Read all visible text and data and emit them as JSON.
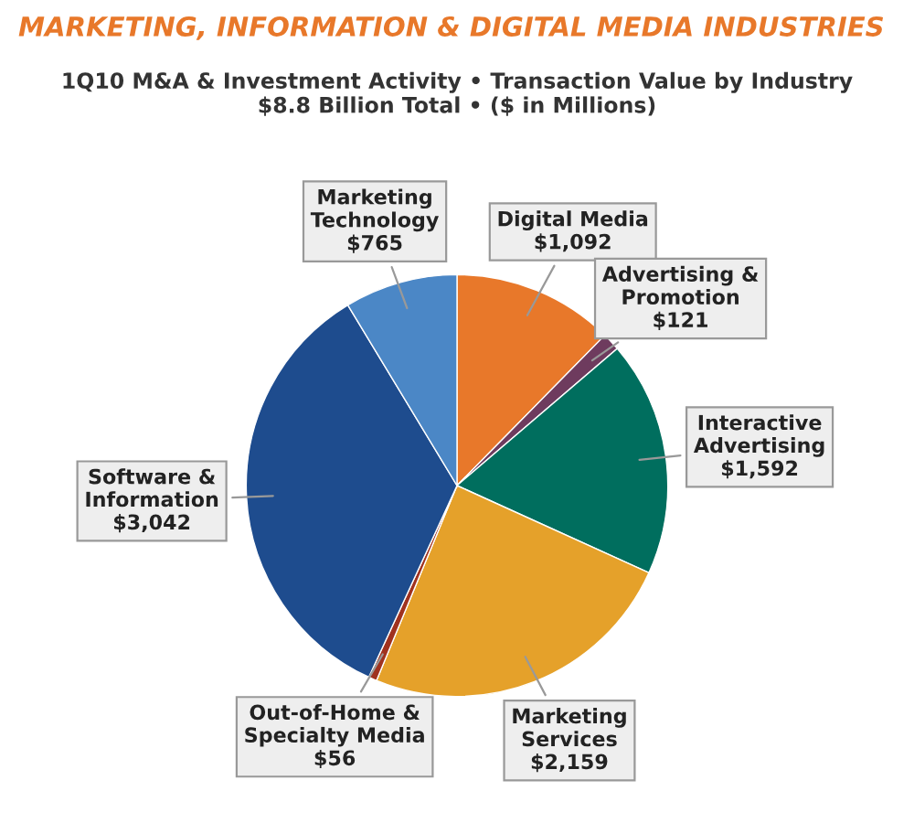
{
  "chart_data": {
    "type": "pie",
    "title": "MARKETING, INFORMATION & DIGITAL MEDIA INDUSTRIES",
    "subtitle": "1Q10 M&A & Investment Activity • Transaction Value by Industry\n$8.8 Billion Total • ($ in Millions)",
    "categories": [
      "Digital Media",
      "Advertising & Promotion",
      "Interactive Advertising",
      "Marketing Services",
      "Out-of-Home & Specialty Media",
      "Software & Information",
      "Marketing Technology"
    ],
    "values": [
      1092,
      121,
      1592,
      2159,
      56,
      3042,
      765
    ],
    "value_labels": [
      "$1,092",
      "$121",
      "$1,592",
      "$2,159",
      "$56",
      "$3,042",
      "$765"
    ],
    "colors": [
      "#e8782a",
      "#6e3b5e",
      "#006e5e",
      "#e5a12a",
      "#a0321f",
      "#1e4c8e",
      "#4b87c6"
    ]
  }
}
